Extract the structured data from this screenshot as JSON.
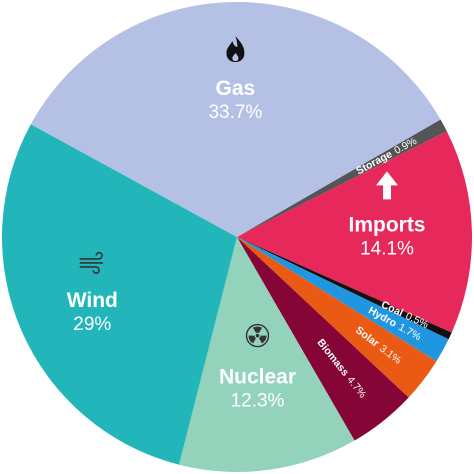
{
  "chart_data": {
    "type": "pie",
    "slices": [
      {
        "name": "Storage",
        "value": 0.9,
        "label": "0.9%",
        "color": "#555558"
      },
      {
        "name": "Imports",
        "value": 14.1,
        "label": "14.1%",
        "color": "#e6285a",
        "icon": "arrow-up-icon"
      },
      {
        "name": "Coal",
        "value": 0.5,
        "label": "0.5%",
        "color": "#111111"
      },
      {
        "name": "Hydro",
        "value": 1.7,
        "label": "1.7%",
        "color": "#2196e0"
      },
      {
        "name": "Solar",
        "value": 3.1,
        "label": "3.1%",
        "color": "#eb5a14"
      },
      {
        "name": "Biomass",
        "value": 4.7,
        "label": "4.7%",
        "color": "#850537"
      },
      {
        "name": "Nuclear",
        "value": 12.3,
        "label": "12.3%",
        "color": "#93d3bb",
        "icon": "radiation-icon"
      },
      {
        "name": "Wind",
        "value": 29,
        "label": "29%",
        "color": "#22b6bb",
        "icon": "wind-icon"
      },
      {
        "name": "Gas",
        "value": 33.7,
        "label": "33.7%",
        "color": "#b4c1e4",
        "icon": "flame-icon"
      }
    ],
    "start_angle_deg": 30,
    "legend": "none"
  }
}
